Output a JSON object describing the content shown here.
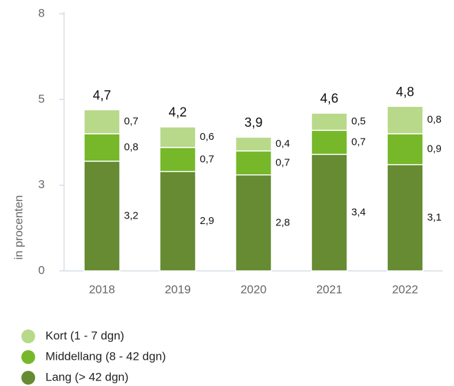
{
  "chart_data": {
    "type": "stacked-bar",
    "y_label": "in procenten",
    "categories": [
      "2018",
      "2019",
      "2020",
      "2021",
      "2022"
    ],
    "series": [
      {
        "name": "Lang (> 42 dgn)",
        "color": "#668b32",
        "values": [
          3.2,
          2.9,
          2.8,
          3.4,
          3.1
        ],
        "value_labels": [
          "3,2",
          "2,9",
          "2,8",
          "3,4",
          "3,1"
        ]
      },
      {
        "name": "Middellang (8 - 42 dgn)",
        "color": "#76b82a",
        "values": [
          0.8,
          0.7,
          0.7,
          0.7,
          0.9
        ],
        "value_labels": [
          "0,8",
          "0,7",
          "0,7",
          "0,7",
          "0,9"
        ]
      },
      {
        "name": "Kort (1 - 7 dgn)",
        "color": "#b9d98a",
        "values": [
          0.7,
          0.6,
          0.4,
          0.5,
          0.8
        ],
        "value_labels": [
          "0,7",
          "0,6",
          "0,4",
          "0,5",
          "0,8"
        ]
      }
    ],
    "totals": [
      4.7,
      4.2,
      3.9,
      4.6,
      4.8
    ],
    "total_labels": [
      "4,7",
      "4,2",
      "3,9",
      "4,6",
      "4,8"
    ],
    "ylim": [
      0,
      7.5
    ],
    "yticks": [
      0,
      {
        "value": 2.5,
        "label": "3"
      },
      5,
      {
        "value": 7.5,
        "label": "8"
      }
    ]
  }
}
